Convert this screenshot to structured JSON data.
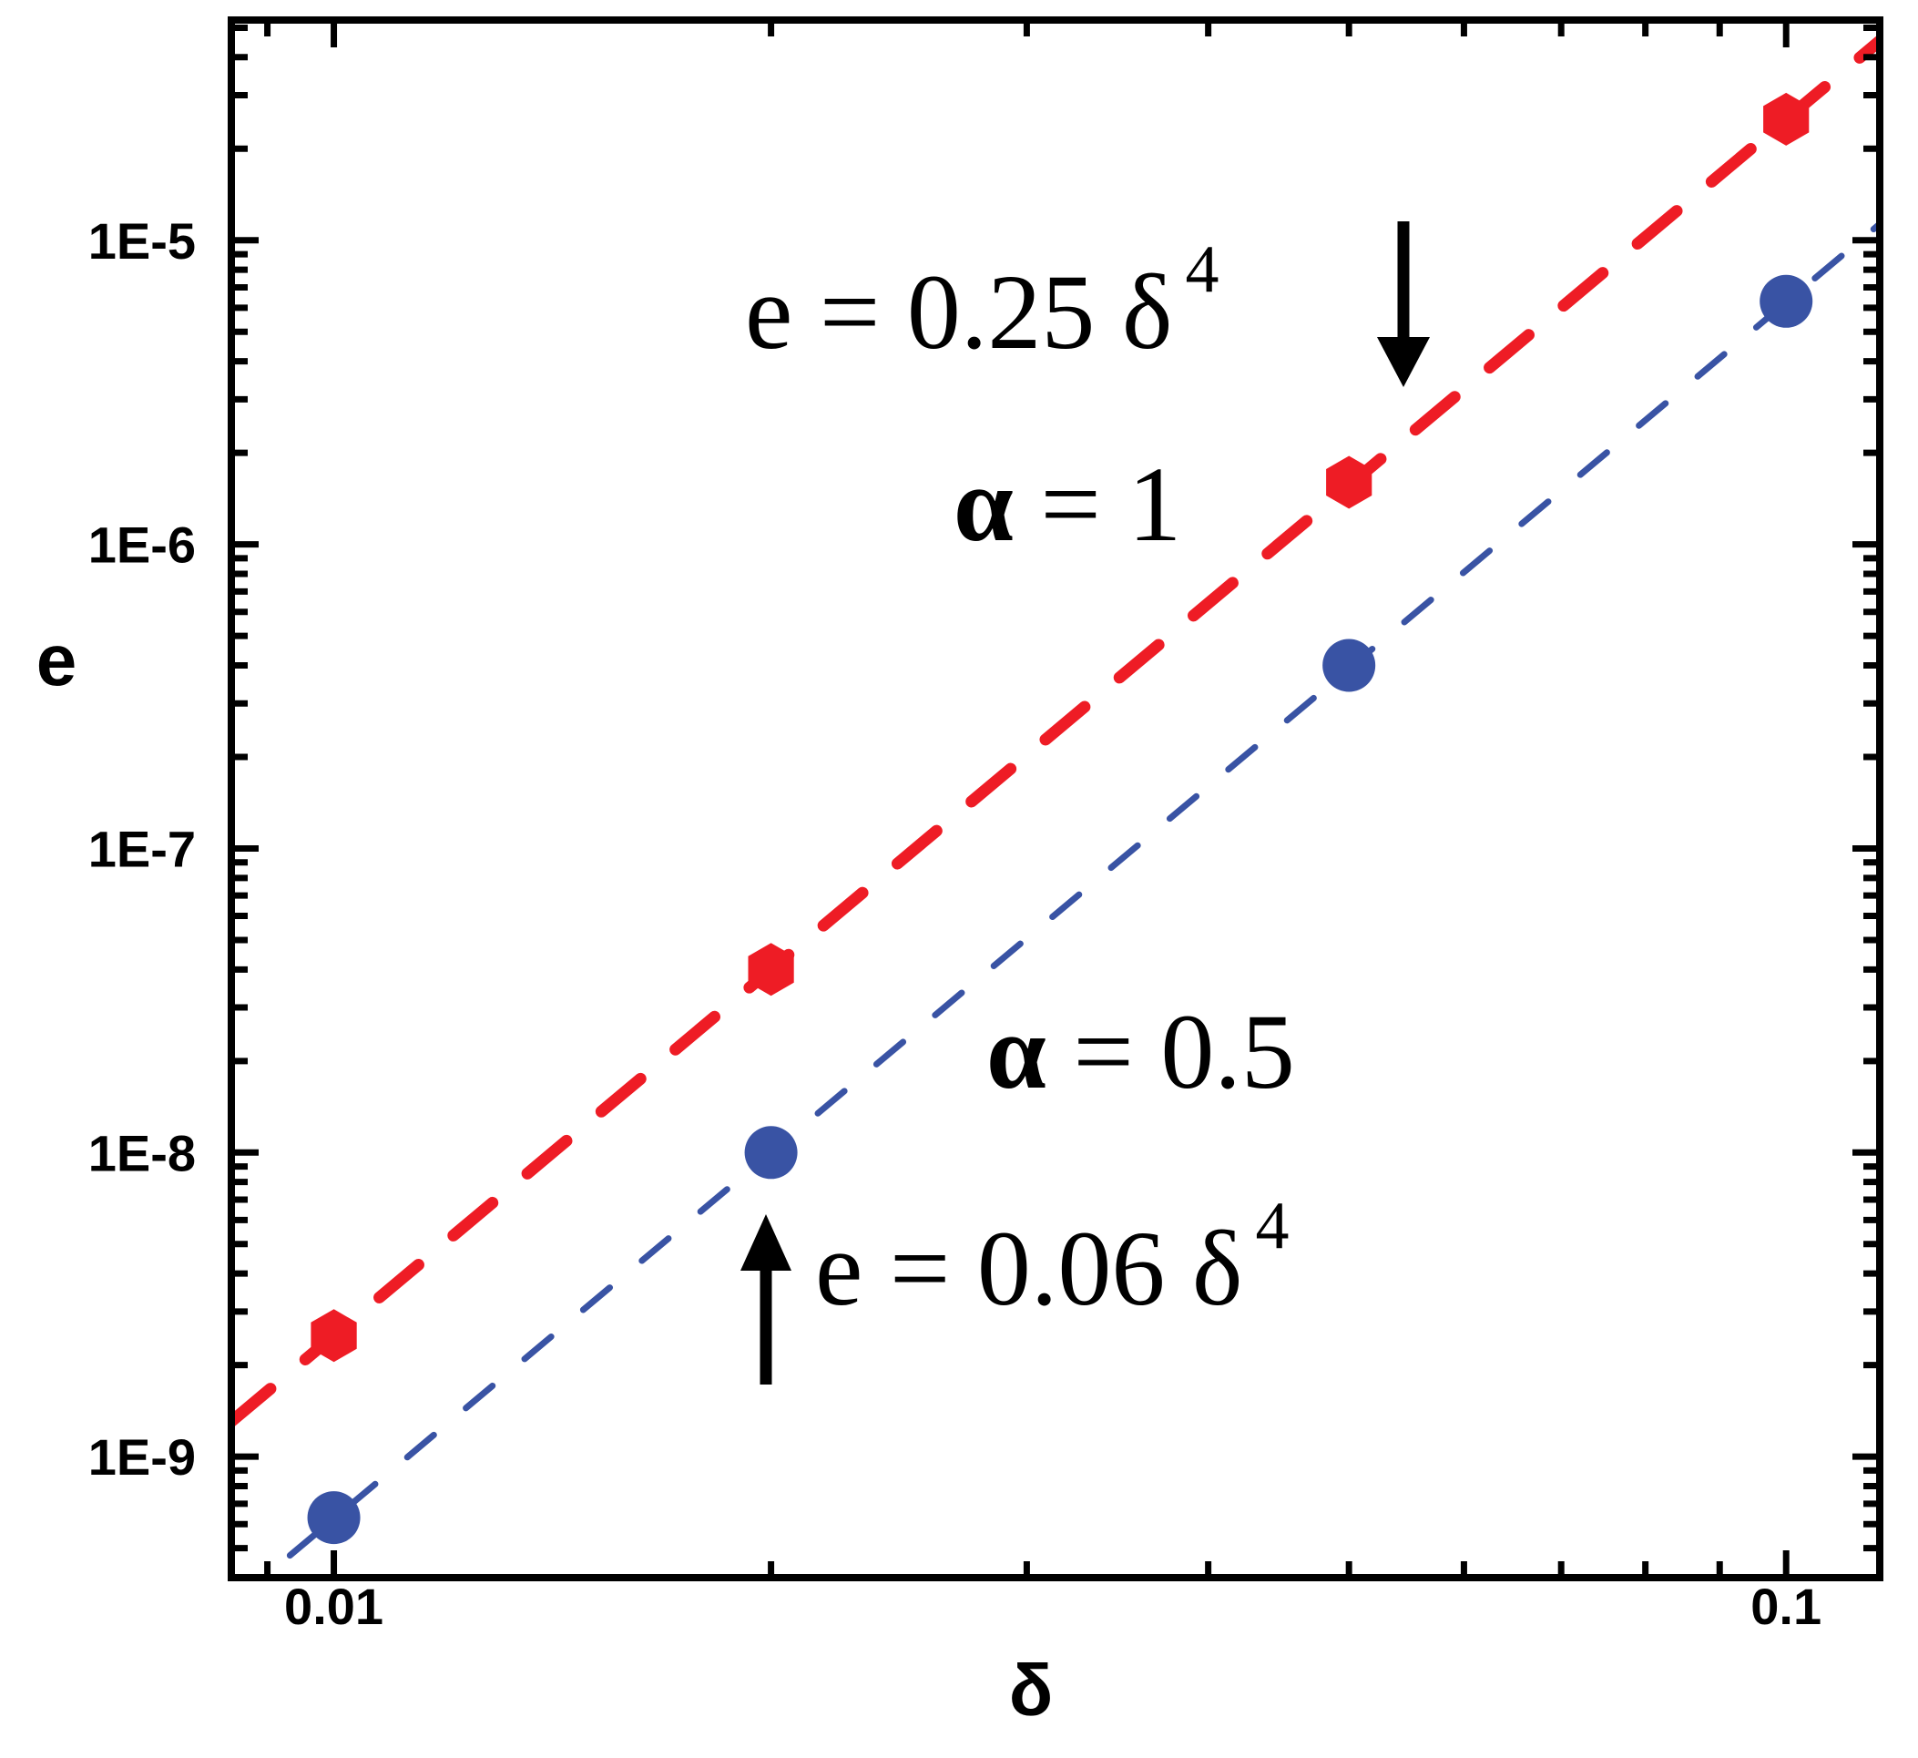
{
  "chart_data": {
    "type": "scatter",
    "xscale": "log",
    "yscale": "log",
    "xlabel": "δ",
    "ylabel": "e",
    "xlim": [
      0.0085,
      0.116
    ],
    "ylim": [
      4e-10,
      5.3e-05
    ],
    "xticks": [
      {
        "value": 0.01,
        "label": "0.01"
      },
      {
        "value": 0.1,
        "label": "0.1"
      }
    ],
    "yticks": [
      {
        "value": 1e-09,
        "label": "1E-9"
      },
      {
        "value": 1e-08,
        "label": "1E-8"
      },
      {
        "value": 1e-07,
        "label": "1E-7"
      },
      {
        "value": 1e-06,
        "label": "1E-6"
      },
      {
        "value": 1e-05,
        "label": "1E-5"
      }
    ],
    "grid": false,
    "series": [
      {
        "color": "#ee1c25",
        "marker": "hexagon",
        "x": [
          0.01,
          0.02,
          0.05,
          0.1
        ],
        "y": [
          2.5e-09,
          4e-08,
          1.6e-06,
          2.5e-05
        ],
        "fit": {
          "coefficient": 0.25,
          "exponent": 4,
          "style": "dashed"
        }
      },
      {
        "color": "#3953a4",
        "marker": "circle",
        "x": [
          0.01,
          0.02,
          0.05,
          0.1
        ],
        "y": [
          6.3e-10,
          1e-08,
          4e-07,
          6.3e-06
        ],
        "fit": {
          "coefficient": 0.0625,
          "exponent": 4,
          "style": "dashed"
        }
      }
    ],
    "annotations": [
      {
        "id": "eq_red",
        "base": "e = 0.25 δ",
        "sup": "4"
      },
      {
        "id": "alpha_red",
        "sym": "α",
        "rest": " = 1"
      },
      {
        "id": "alpha_blue",
        "sym": "α",
        "rest": " = 0.5"
      },
      {
        "id": "eq_blue",
        "base": "e = 0.06 δ",
        "sup": "4"
      }
    ]
  }
}
